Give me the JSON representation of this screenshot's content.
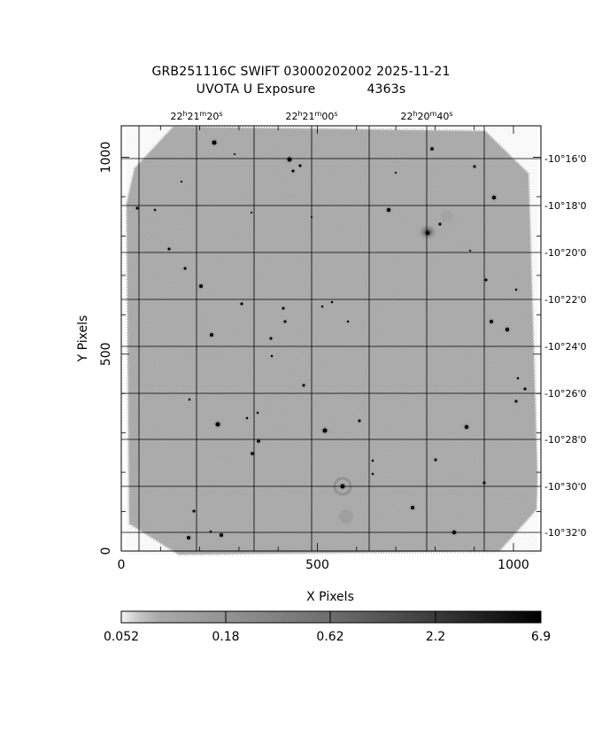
{
  "title": {
    "line1": "GRB251116C SWIFT 03000202002 2025-11-21",
    "line2_left": "UVOTA U Exposure",
    "line2_right": "4363s"
  },
  "axes": {
    "xlabel": "X Pixels",
    "ylabel": "Y Pixels",
    "xlim": [
      0,
      1070
    ],
    "ylim": [
      0,
      1080
    ],
    "x_ticks": [
      {
        "v": 0,
        "label": "0"
      },
      {
        "v": 500,
        "label": "500"
      },
      {
        "v": 1000,
        "label": "1000"
      }
    ],
    "y_ticks": [
      {
        "v": 0,
        "label": "0"
      },
      {
        "v": 500,
        "label": "500"
      },
      {
        "v": 1000,
        "label": "1000"
      }
    ],
    "x_minor_step": 100,
    "y_minor_step": 100
  },
  "ra_labels": [
    {
      "h": "22",
      "m": "21",
      "s": "20"
    },
    {
      "h": "22",
      "m": "21",
      "s": "00"
    },
    {
      "h": "22",
      "m": "20",
      "s": "40"
    }
  ],
  "dec_labels": [
    "-10°16'0",
    "-10°18'0",
    "-10°20'0",
    "-10°22'0",
    "-10°24'0",
    "-10°26'0",
    "-10°28'0",
    "-10°30'0",
    "-10°32'0"
  ],
  "colorbar": {
    "labels": [
      "0.052",
      "0.18",
      "0.62",
      "2.2",
      "6.9"
    ],
    "color_low": "#f4f4f4",
    "color_high": "#000000"
  },
  "image": {
    "background_color": "#a8a8a8",
    "frame_color": "#000000"
  }
}
